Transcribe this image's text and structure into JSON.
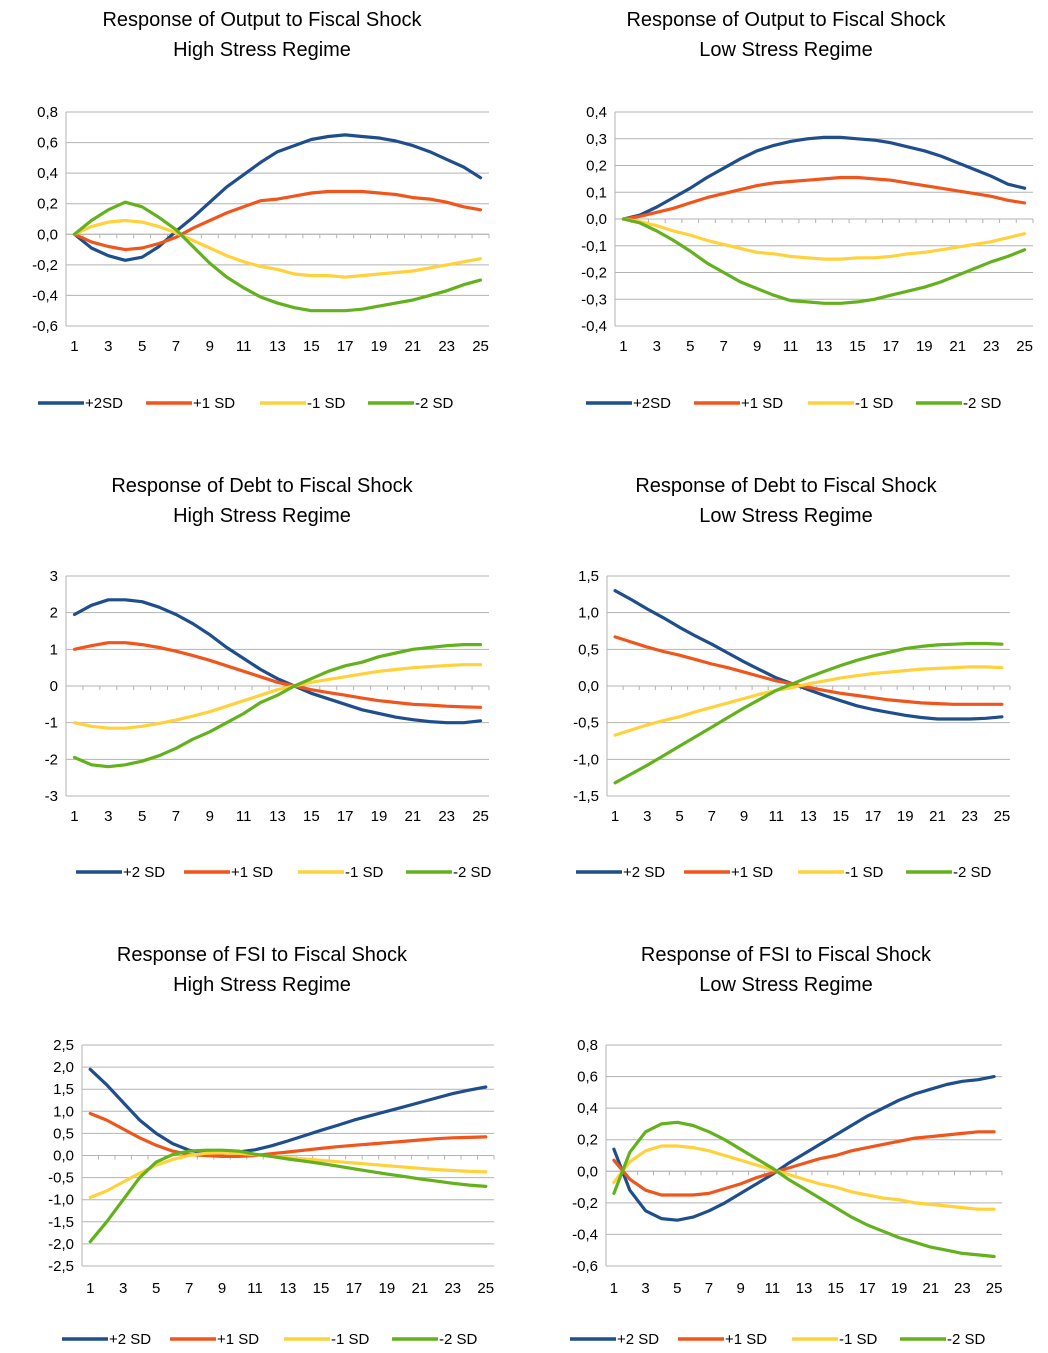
{
  "colors": {
    "series": [
      "#1f4e8c",
      "#f0561c",
      "#ffd23c",
      "#63b11c"
    ],
    "axis": "#b3b3b3",
    "grid": "#b3b3b3"
  },
  "chart_data": [
    {
      "type": "line",
      "title": [
        "Response of Output to Fiscal Shock",
        "High Stress Regime"
      ],
      "ylim": [
        -0.6,
        0.8
      ],
      "ystep": 0.2,
      "decimals": 1,
      "x": [
        1,
        2,
        3,
        4,
        5,
        6,
        7,
        8,
        9,
        10,
        11,
        12,
        13,
        14,
        15,
        16,
        17,
        18,
        19,
        20,
        21,
        22,
        23,
        24,
        25
      ],
      "xticks": [
        "1",
        "3",
        "5",
        "7",
        "9",
        "11",
        "13",
        "15",
        "17",
        "19",
        "21",
        "23",
        "25"
      ],
      "legend_position": "bottom",
      "series": [
        {
          "name": "+2SD",
          "values": [
            0,
            -0.09,
            -0.14,
            -0.17,
            -0.15,
            -0.08,
            0.02,
            0.11,
            0.21,
            0.31,
            0.39,
            0.47,
            0.54,
            0.58,
            0.62,
            0.64,
            0.65,
            0.64,
            0.63,
            0.61,
            0.58,
            0.54,
            0.49,
            0.44,
            0.37
          ]
        },
        {
          "name": "+1 SD",
          "values": [
            0,
            -0.05,
            -0.08,
            -0.1,
            -0.09,
            -0.06,
            -0.02,
            0.04,
            0.09,
            0.14,
            0.18,
            0.22,
            0.23,
            0.25,
            0.27,
            0.28,
            0.28,
            0.28,
            0.27,
            0.26,
            0.24,
            0.23,
            0.21,
            0.18,
            0.16
          ]
        },
        {
          "name": "-1 SD",
          "values": [
            0,
            0.05,
            0.08,
            0.09,
            0.08,
            0.05,
            0.01,
            -0.04,
            -0.09,
            -0.14,
            -0.18,
            -0.21,
            -0.23,
            -0.26,
            -0.27,
            -0.27,
            -0.28,
            -0.27,
            -0.26,
            -0.25,
            -0.24,
            -0.22,
            -0.2,
            -0.18,
            -0.16
          ]
        },
        {
          "name": "-2 SD",
          "values": [
            0,
            0.09,
            0.16,
            0.21,
            0.18,
            0.11,
            0.03,
            -0.08,
            -0.19,
            -0.28,
            -0.35,
            -0.41,
            -0.45,
            -0.48,
            -0.5,
            -0.5,
            -0.5,
            -0.49,
            -0.47,
            -0.45,
            -0.43,
            -0.4,
            -0.37,
            -0.33,
            -0.3
          ]
        }
      ]
    },
    {
      "type": "line",
      "title": [
        "Response of Output to Fiscal Shock",
        "Low Stress Regime"
      ],
      "ylim": [
        -0.4,
        0.4
      ],
      "ystep": 0.1,
      "decimals": 1,
      "x": [
        1,
        2,
        3,
        4,
        5,
        6,
        7,
        8,
        9,
        10,
        11,
        12,
        13,
        14,
        15,
        16,
        17,
        18,
        19,
        20,
        21,
        22,
        23,
        24,
        25
      ],
      "xticks": [
        "1",
        "3",
        "5",
        "7",
        "9",
        "11",
        "13",
        "15",
        "17",
        "19",
        "21",
        "23",
        "25"
      ],
      "legend_position": "bottom",
      "series": [
        {
          "name": "+2SD",
          "values": [
            0,
            0.015,
            0.045,
            0.08,
            0.115,
            0.155,
            0.19,
            0.225,
            0.255,
            0.275,
            0.29,
            0.3,
            0.305,
            0.305,
            0.3,
            0.295,
            0.285,
            0.27,
            0.255,
            0.235,
            0.21,
            0.185,
            0.16,
            0.13,
            0.115
          ]
        },
        {
          "name": "+1 SD",
          "values": [
            0,
            0.01,
            0.025,
            0.04,
            0.06,
            0.08,
            0.095,
            0.11,
            0.125,
            0.135,
            0.14,
            0.145,
            0.15,
            0.155,
            0.155,
            0.15,
            0.145,
            0.135,
            0.125,
            0.115,
            0.105,
            0.095,
            0.085,
            0.07,
            0.06
          ]
        },
        {
          "name": "-1 SD",
          "values": [
            0,
            -0.01,
            -0.025,
            -0.045,
            -0.06,
            -0.08,
            -0.095,
            -0.11,
            -0.125,
            -0.13,
            -0.14,
            -0.145,
            -0.15,
            -0.15,
            -0.145,
            -0.145,
            -0.14,
            -0.13,
            -0.125,
            -0.115,
            -0.105,
            -0.095,
            -0.085,
            -0.07,
            -0.055
          ]
        },
        {
          "name": "-2 SD",
          "values": [
            0,
            -0.015,
            -0.045,
            -0.08,
            -0.12,
            -0.165,
            -0.2,
            -0.235,
            -0.26,
            -0.285,
            -0.305,
            -0.31,
            -0.315,
            -0.315,
            -0.31,
            -0.3,
            -0.285,
            -0.27,
            -0.255,
            -0.235,
            -0.21,
            -0.185,
            -0.16,
            -0.14,
            -0.115
          ]
        }
      ]
    },
    {
      "type": "line",
      "title": [
        "Response of Debt to Fiscal Shock",
        "High Stress Regime"
      ],
      "ylim": [
        -3,
        3
      ],
      "ystep": 1,
      "decimals": 0,
      "x": [
        1,
        2,
        3,
        4,
        5,
        6,
        7,
        8,
        9,
        10,
        11,
        12,
        13,
        14,
        15,
        16,
        17,
        18,
        19,
        20,
        21,
        22,
        23,
        24,
        25
      ],
      "xticks": [
        "1",
        "3",
        "5",
        "7",
        "9",
        "11",
        "13",
        "15",
        "17",
        "19",
        "21",
        "23",
        "25"
      ],
      "legend_position": "bottom",
      "series": [
        {
          "name": "+2 SD",
          "values": [
            1.95,
            2.2,
            2.35,
            2.35,
            2.3,
            2.15,
            1.95,
            1.7,
            1.4,
            1.05,
            0.75,
            0.45,
            0.2,
            0,
            -0.2,
            -0.35,
            -0.5,
            -0.65,
            -0.75,
            -0.85,
            -0.92,
            -0.97,
            -1,
            -1,
            -0.95
          ]
        },
        {
          "name": "+1 SD",
          "values": [
            1,
            1.1,
            1.18,
            1.18,
            1.13,
            1.05,
            0.95,
            0.83,
            0.7,
            0.55,
            0.4,
            0.25,
            0.1,
            0,
            -0.1,
            -0.18,
            -0.25,
            -0.33,
            -0.4,
            -0.45,
            -0.5,
            -0.52,
            -0.55,
            -0.57,
            -0.58
          ]
        },
        {
          "name": "-1 SD",
          "values": [
            -1,
            -1.1,
            -1.15,
            -1.15,
            -1.1,
            -1.02,
            -0.93,
            -0.82,
            -0.7,
            -0.55,
            -0.4,
            -0.25,
            -0.1,
            0,
            0.1,
            0.18,
            0.25,
            0.33,
            0.4,
            0.45,
            0.5,
            0.53,
            0.56,
            0.58,
            0.58
          ]
        },
        {
          "name": "-2 SD",
          "values": [
            -1.95,
            -2.15,
            -2.2,
            -2.15,
            -2.05,
            -1.9,
            -1.7,
            -1.45,
            -1.25,
            -1,
            -0.75,
            -0.45,
            -0.25,
            0,
            0.2,
            0.4,
            0.55,
            0.65,
            0.8,
            0.9,
            1,
            1.05,
            1.1,
            1.13,
            1.13
          ]
        }
      ]
    },
    {
      "type": "line",
      "title": [
        "Response of Debt to Fiscal Shock",
        "Low Stress Regime"
      ],
      "ylim": [
        -1.5,
        1.5
      ],
      "ystep": 0.5,
      "decimals": 1,
      "x": [
        1,
        2,
        3,
        4,
        5,
        6,
        7,
        8,
        9,
        10,
        11,
        12,
        13,
        14,
        15,
        16,
        17,
        18,
        19,
        20,
        21,
        22,
        23,
        24,
        25
      ],
      "xticks": [
        "1",
        "3",
        "5",
        "7",
        "9",
        "11",
        "13",
        "15",
        "17",
        "19",
        "21",
        "23",
        "25"
      ],
      "legend_position": "bottom",
      "series": [
        {
          "name": "+2 SD",
          "values": [
            1.3,
            1.18,
            1.05,
            0.93,
            0.8,
            0.68,
            0.57,
            0.45,
            0.33,
            0.22,
            0.11,
            0.03,
            -0.05,
            -0.13,
            -0.2,
            -0.27,
            -0.32,
            -0.36,
            -0.4,
            -0.43,
            -0.45,
            -0.45,
            -0.45,
            -0.44,
            -0.42
          ]
        },
        {
          "name": "+1 SD",
          "values": [
            0.67,
            0.6,
            0.53,
            0.47,
            0.42,
            0.36,
            0.3,
            0.25,
            0.19,
            0.13,
            0.07,
            0.03,
            -0.02,
            -0.06,
            -0.1,
            -0.13,
            -0.16,
            -0.19,
            -0.21,
            -0.23,
            -0.24,
            -0.25,
            -0.25,
            -0.25,
            -0.25
          ]
        },
        {
          "name": "-1 SD",
          "values": [
            -0.67,
            -0.6,
            -0.53,
            -0.47,
            -0.42,
            -0.35,
            -0.29,
            -0.23,
            -0.17,
            -0.11,
            -0.06,
            -0.02,
            0.03,
            0.07,
            0.11,
            0.14,
            0.17,
            0.19,
            0.21,
            0.23,
            0.24,
            0.25,
            0.26,
            0.26,
            0.25
          ]
        },
        {
          "name": "-2 SD",
          "values": [
            -1.32,
            -1.2,
            -1.08,
            -0.95,
            -0.82,
            -0.69,
            -0.56,
            -0.43,
            -0.3,
            -0.18,
            -0.06,
            0.03,
            0.12,
            0.2,
            0.28,
            0.35,
            0.41,
            0.46,
            0.51,
            0.54,
            0.56,
            0.57,
            0.58,
            0.58,
            0.57
          ]
        }
      ]
    },
    {
      "type": "line",
      "title": [
        "Response of FSI to Fiscal Shock",
        "High Stress Regime"
      ],
      "ylim": [
        -2.5,
        2.5
      ],
      "ystep": 0.5,
      "decimals": 1,
      "x": [
        1,
        2,
        3,
        4,
        5,
        6,
        7,
        8,
        9,
        10,
        11,
        12,
        13,
        14,
        15,
        16,
        17,
        18,
        19,
        20,
        21,
        22,
        23,
        24,
        25
      ],
      "xticks": [
        "1",
        "3",
        "5",
        "7",
        "9",
        "11",
        "13",
        "15",
        "17",
        "19",
        "21",
        "23",
        "25"
      ],
      "legend_position": "bottom",
      "series": [
        {
          "name": "+2 SD",
          "values": [
            1.95,
            1.6,
            1.2,
            0.8,
            0.5,
            0.27,
            0.12,
            0.05,
            0.05,
            0.08,
            0.13,
            0.22,
            0.33,
            0.45,
            0.57,
            0.68,
            0.8,
            0.9,
            1,
            1.1,
            1.2,
            1.3,
            1.4,
            1.48,
            1.55
          ]
        },
        {
          "name": "+1 SD",
          "values": [
            0.95,
            0.8,
            0.6,
            0.4,
            0.23,
            0.1,
            0.02,
            0,
            -0.02,
            -0.02,
            0,
            0.04,
            0.08,
            0.12,
            0.16,
            0.2,
            0.23,
            0.26,
            0.29,
            0.32,
            0.35,
            0.38,
            0.4,
            0.41,
            0.42
          ]
        },
        {
          "name": "-1 SD",
          "values": [
            -0.95,
            -0.8,
            -0.6,
            -0.4,
            -0.22,
            -0.09,
            0,
            0.05,
            0.06,
            0.05,
            0.02,
            -0.02,
            -0.05,
            -0.08,
            -0.11,
            -0.14,
            -0.17,
            -0.2,
            -0.23,
            -0.26,
            -0.29,
            -0.32,
            -0.34,
            -0.36,
            -0.37
          ]
        },
        {
          "name": "-2 SD",
          "values": [
            -1.95,
            -1.5,
            -1,
            -0.5,
            -0.15,
            0.02,
            0.1,
            0.12,
            0.12,
            0.1,
            0.03,
            -0.02,
            -0.08,
            -0.13,
            -0.18,
            -0.24,
            -0.3,
            -0.36,
            -0.42,
            -0.47,
            -0.53,
            -0.58,
            -0.63,
            -0.67,
            -0.7
          ]
        }
      ]
    },
    {
      "type": "line",
      "title": [
        "Response of FSI to Fiscal Shock",
        "Low Stress Regime"
      ],
      "ylim": [
        -0.6,
        0.8
      ],
      "ystep": 0.2,
      "decimals": 1,
      "x": [
        1,
        2,
        3,
        4,
        5,
        6,
        7,
        8,
        9,
        10,
        11,
        12,
        13,
        14,
        15,
        16,
        17,
        18,
        19,
        20,
        21,
        22,
        23,
        24,
        25
      ],
      "xticks": [
        "1",
        "3",
        "5",
        "7",
        "9",
        "11",
        "13",
        "15",
        "17",
        "19",
        "21",
        "23",
        "25"
      ],
      "legend_position": "bottom",
      "series": [
        {
          "name": "+2 SD",
          "values": [
            0.14,
            -0.12,
            -0.25,
            -0.3,
            -0.31,
            -0.29,
            -0.25,
            -0.2,
            -0.14,
            -0.08,
            -0.02,
            0.05,
            0.11,
            0.17,
            0.23,
            0.29,
            0.35,
            0.4,
            0.45,
            0.49,
            0.52,
            0.55,
            0.57,
            0.58,
            0.6
          ]
        },
        {
          "name": "+1 SD",
          "values": [
            0.07,
            -0.05,
            -0.12,
            -0.15,
            -0.15,
            -0.15,
            -0.14,
            -0.11,
            -0.08,
            -0.04,
            -0.01,
            0.02,
            0.05,
            0.08,
            0.1,
            0.13,
            0.15,
            0.17,
            0.19,
            0.21,
            0.22,
            0.23,
            0.24,
            0.25,
            0.25
          ]
        },
        {
          "name": "-1 SD",
          "values": [
            -0.07,
            0.06,
            0.13,
            0.16,
            0.16,
            0.15,
            0.13,
            0.1,
            0.07,
            0.04,
            0.01,
            -0.02,
            -0.05,
            -0.08,
            -0.1,
            -0.13,
            -0.15,
            -0.17,
            -0.18,
            -0.2,
            -0.21,
            -0.22,
            -0.23,
            -0.24,
            -0.24
          ]
        },
        {
          "name": "-2 SD",
          "values": [
            -0.14,
            0.12,
            0.25,
            0.3,
            0.31,
            0.29,
            0.25,
            0.2,
            0.14,
            0.08,
            0.02,
            -0.05,
            -0.11,
            -0.17,
            -0.23,
            -0.29,
            -0.34,
            -0.38,
            -0.42,
            -0.45,
            -0.48,
            -0.5,
            -0.52,
            -0.53,
            -0.54
          ]
        }
      ]
    }
  ]
}
